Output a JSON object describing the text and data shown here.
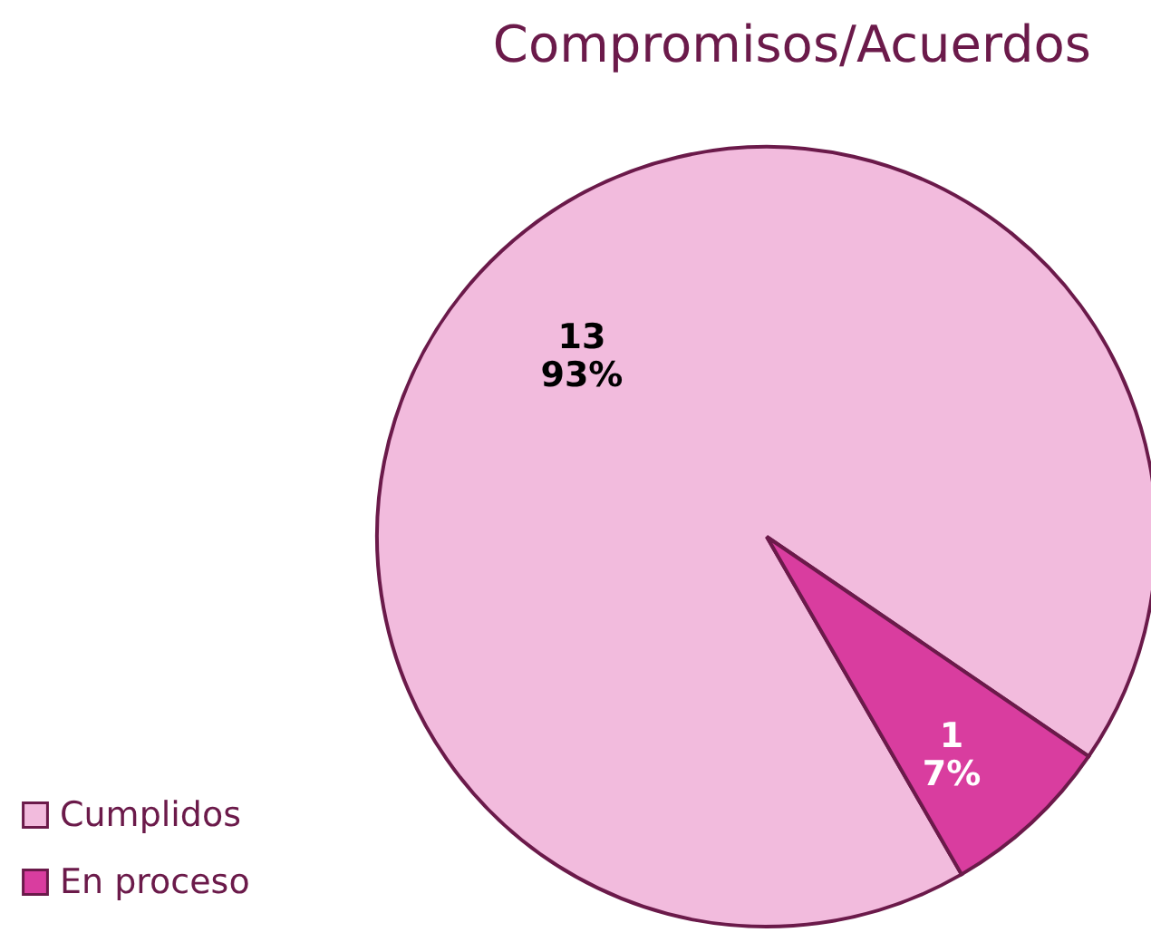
{
  "chart_data": {
    "type": "pie",
    "title": "Compromisos/Acuerdos",
    "categories": [
      "Cumplidos",
      "En proceso"
    ],
    "values": [
      13,
      1
    ],
    "colors": [
      "#f2bbdd",
      "#d93d9f"
    ],
    "value_labels": [
      "13\n93%",
      "1\n7%"
    ],
    "legend": "bottom left"
  }
}
